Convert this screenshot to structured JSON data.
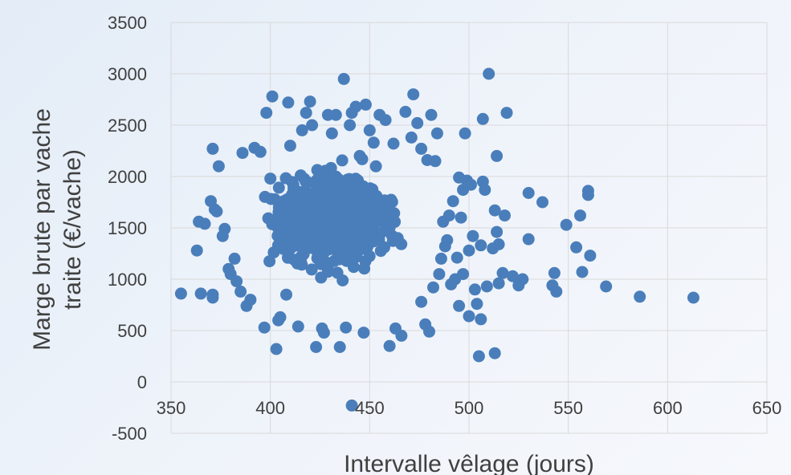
{
  "chart_data": {
    "type": "scatter",
    "title": "",
    "xlabel": "Intervalle vêlage (jours)",
    "ylabel_lines": [
      "Marge brute par vache",
      "traite (€/vache)"
    ],
    "xlim": [
      350,
      650
    ],
    "ylim": [
      -500,
      3500
    ],
    "x_ticks": [
      350,
      400,
      450,
      500,
      550,
      600,
      650
    ],
    "y_ticks": [
      -500,
      0,
      500,
      1000,
      1500,
      2000,
      2500,
      3000,
      3500
    ],
    "grid": true,
    "legend": "none",
    "marker_color": "#4a7ebb",
    "dense_cluster": {
      "x_range": [
        378,
        484
      ],
      "y_range": [
        800,
        2350
      ],
      "note_count": 900
    },
    "points": [
      [
        355,
        860
      ],
      [
        365,
        860
      ],
      [
        371,
        850
      ],
      [
        371,
        820
      ],
      [
        363,
        1280
      ],
      [
        364,
        1560
      ],
      [
        367,
        1540
      ],
      [
        370,
        1760
      ],
      [
        372,
        1680
      ],
      [
        373,
        1660
      ],
      [
        374,
        2100
      ],
      [
        371,
        2270
      ],
      [
        376,
        1420
      ],
      [
        377,
        1490
      ],
      [
        379,
        1100
      ],
      [
        380,
        1050
      ],
      [
        382,
        1200
      ],
      [
        383,
        980
      ],
      [
        385,
        880
      ],
      [
        386,
        2230
      ],
      [
        388,
        740
      ],
      [
        390,
        800
      ],
      [
        392,
        2280
      ],
      [
        395,
        2240
      ],
      [
        397,
        530
      ],
      [
        398,
        2620
      ],
      [
        400,
        1980
      ],
      [
        401,
        2780
      ],
      [
        403,
        320
      ],
      [
        404,
        600
      ],
      [
        405,
        630
      ],
      [
        408,
        850
      ],
      [
        409,
        2720
      ],
      [
        410,
        2300
      ],
      [
        414,
        540
      ],
      [
        416,
        2450
      ],
      [
        418,
        2620
      ],
      [
        420,
        2730
      ],
      [
        421,
        2500
      ],
      [
        423,
        340
      ],
      [
        424,
        1930
      ],
      [
        426,
        520
      ],
      [
        427,
        480
      ],
      [
        429,
        2600
      ],
      [
        431,
        2420
      ],
      [
        433,
        2600
      ],
      [
        435,
        340
      ],
      [
        437,
        2950
      ],
      [
        438,
        530
      ],
      [
        440,
        2500
      ],
      [
        441,
        2620
      ],
      [
        443,
        2680
      ],
      [
        445,
        2200
      ],
      [
        447,
        480
      ],
      [
        448,
        2700
      ],
      [
        450,
        2450
      ],
      [
        452,
        2330
      ],
      [
        455,
        2600
      ],
      [
        458,
        2550
      ],
      [
        460,
        350
      ],
      [
        462,
        2320
      ],
      [
        463,
        520
      ],
      [
        466,
        450
      ],
      [
        468,
        2630
      ],
      [
        471,
        2380
      ],
      [
        472,
        2800
      ],
      [
        474,
        2520
      ],
      [
        476,
        2270
      ],
      [
        479,
        2160
      ],
      [
        480,
        490
      ],
      [
        481,
        2600
      ],
      [
        483,
        2150
      ],
      [
        484,
        2420
      ],
      [
        478,
        560
      ],
      [
        476,
        780
      ],
      [
        482,
        920
      ],
      [
        485,
        1050
      ],
      [
        486,
        1200
      ],
      [
        487,
        1560
      ],
      [
        488,
        1320
      ],
      [
        489,
        1380
      ],
      [
        490,
        1620
      ],
      [
        491,
        950
      ],
      [
        492,
        1760
      ],
      [
        493,
        1000
      ],
      [
        494,
        1210
      ],
      [
        495,
        1990
      ],
      [
        495,
        740
      ],
      [
        496,
        1600
      ],
      [
        497,
        1870
      ],
      [
        497,
        1050
      ],
      [
        498,
        2420
      ],
      [
        499,
        1960
      ],
      [
        500,
        640
      ],
      [
        500,
        1280
      ],
      [
        501,
        1920
      ],
      [
        502,
        1420
      ],
      [
        503,
        900
      ],
      [
        504,
        760
      ],
      [
        505,
        250
      ],
      [
        506,
        610
      ],
      [
        506,
        1330
      ],
      [
        507,
        2560
      ],
      [
        507,
        1950
      ],
      [
        508,
        1870
      ],
      [
        509,
        930
      ],
      [
        510,
        3000
      ],
      [
        512,
        1300
      ],
      [
        513,
        280
      ],
      [
        513,
        1670
      ],
      [
        514,
        1460
      ],
      [
        514,
        2200
      ],
      [
        515,
        1340
      ],
      [
        515,
        960
      ],
      [
        517,
        1060
      ],
      [
        518,
        1620
      ],
      [
        519,
        2620
      ],
      [
        522,
        1030
      ],
      [
        525,
        940
      ],
      [
        527,
        1000
      ],
      [
        530,
        1390
      ],
      [
        530,
        1840
      ],
      [
        537,
        1750
      ],
      [
        542,
        940
      ],
      [
        543,
        1060
      ],
      [
        544,
        880
      ],
      [
        549,
        1530
      ],
      [
        554,
        1310
      ],
      [
        556,
        1620
      ],
      [
        557,
        1070
      ],
      [
        560,
        1820
      ],
      [
        560,
        1860
      ],
      [
        561,
        1230
      ],
      [
        569,
        930
      ],
      [
        586,
        830
      ],
      [
        613,
        820
      ],
      [
        441,
        -230
      ]
    ]
  }
}
